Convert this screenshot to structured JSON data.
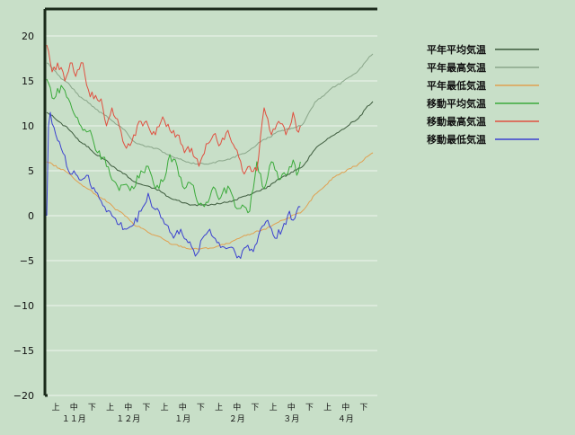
{
  "chart_data": {
    "type": "line",
    "ylim": [
      -20,
      23
    ],
    "yticks": [
      20,
      15,
      10,
      5,
      0,
      -5,
      -10,
      -15,
      -20
    ],
    "ytick_labels": [
      "20",
      "15",
      "10",
      "5",
      "0",
      "−5",
      "−10",
      "−15",
      "−20"
    ],
    "xlim": [
      0,
      180
    ],
    "xticks": [
      {
        "x": 5,
        "label": "上"
      },
      {
        "x": 15,
        "label": "中"
      },
      {
        "x": 25,
        "label": "下"
      },
      {
        "x": 35,
        "label": "上"
      },
      {
        "x": 45,
        "label": "中"
      },
      {
        "x": 55,
        "label": "下"
      },
      {
        "x": 65,
        "label": "上"
      },
      {
        "x": 75,
        "label": "中"
      },
      {
        "x": 85,
        "label": "下"
      },
      {
        "x": 95,
        "label": "上"
      },
      {
        "x": 105,
        "label": "中"
      },
      {
        "x": 115,
        "label": "下"
      },
      {
        "x": 125,
        "label": "上"
      },
      {
        "x": 135,
        "label": "中"
      },
      {
        "x": 145,
        "label": "下"
      },
      {
        "x": 155,
        "label": "上"
      },
      {
        "x": 165,
        "label": "中"
      },
      {
        "x": 175,
        "label": "下"
      }
    ],
    "months": [
      {
        "x": 15,
        "label": "１１月"
      },
      {
        "x": 45,
        "label": "１２月"
      },
      {
        "x": 75,
        "label": "１月"
      },
      {
        "x": 105,
        "label": "２月"
      },
      {
        "x": 135,
        "label": "３月"
      },
      {
        "x": 165,
        "label": "４月"
      }
    ],
    "grid": true,
    "legend_position": "right",
    "series": [
      {
        "name": "平年平均気温",
        "color": "#3c5a3c",
        "jagged": false,
        "points": [
          [
            0,
            11.5
          ],
          [
            10,
            10
          ],
          [
            20,
            8
          ],
          [
            30,
            6.5
          ],
          [
            40,
            5
          ],
          [
            50,
            3.6
          ],
          [
            60,
            3
          ],
          [
            70,
            1.8
          ],
          [
            80,
            1.2
          ],
          [
            90,
            1.2
          ],
          [
            100,
            1.5
          ],
          [
            110,
            2.2
          ],
          [
            120,
            3
          ],
          [
            130,
            4.3
          ],
          [
            140,
            5.3
          ],
          [
            150,
            7.8
          ],
          [
            160,
            9.2
          ],
          [
            170,
            10.5
          ],
          [
            180,
            12.7
          ]
        ]
      },
      {
        "name": "平年最高気温",
        "color": "#8aa68a",
        "jagged": false,
        "points": [
          [
            0,
            17
          ],
          [
            10,
            15
          ],
          [
            20,
            13
          ],
          [
            30,
            11.5
          ],
          [
            40,
            10
          ],
          [
            50,
            8
          ],
          [
            60,
            7.5
          ],
          [
            70,
            6.5
          ],
          [
            80,
            5.8
          ],
          [
            90,
            5.8
          ],
          [
            100,
            6.3
          ],
          [
            110,
            7
          ],
          [
            120,
            8.5
          ],
          [
            130,
            9.5
          ],
          [
            140,
            10
          ],
          [
            150,
            13
          ],
          [
            160,
            14.5
          ],
          [
            170,
            15.8
          ],
          [
            180,
            18
          ]
        ]
      },
      {
        "name": "平年最低気温",
        "color": "#e0a050",
        "jagged": false,
        "points": [
          [
            0,
            6
          ],
          [
            10,
            5
          ],
          [
            20,
            3.3
          ],
          [
            30,
            2
          ],
          [
            40,
            0.5
          ],
          [
            50,
            -1.2
          ],
          [
            60,
            -2.2
          ],
          [
            70,
            -3.2
          ],
          [
            80,
            -3.7
          ],
          [
            90,
            -3.6
          ],
          [
            100,
            -3.1
          ],
          [
            110,
            -2.2
          ],
          [
            120,
            -1.5
          ],
          [
            130,
            -0.5
          ],
          [
            140,
            0.3
          ],
          [
            150,
            2.7
          ],
          [
            160,
            4.5
          ],
          [
            170,
            5.5
          ],
          [
            180,
            7
          ]
        ]
      },
      {
        "name": "移動平均気温",
        "color": "#3aaa3a",
        "jagged": true,
        "points": [
          [
            0,
            15.2
          ],
          [
            4,
            13
          ],
          [
            8,
            14.5
          ],
          [
            12,
            13
          ],
          [
            16,
            11
          ],
          [
            20,
            9.5
          ],
          [
            24,
            9.5
          ],
          [
            28,
            7
          ],
          [
            32,
            6.5
          ],
          [
            36,
            4
          ],
          [
            40,
            2.8
          ],
          [
            44,
            3.5
          ],
          [
            48,
            3
          ],
          [
            52,
            5
          ],
          [
            56,
            5.5
          ],
          [
            60,
            3
          ],
          [
            64,
            3.8
          ],
          [
            68,
            6.8
          ],
          [
            72,
            5.5
          ],
          [
            76,
            3
          ],
          [
            80,
            3.5
          ],
          [
            84,
            1.2
          ],
          [
            88,
            1.5
          ],
          [
            92,
            3.2
          ],
          [
            96,
            2
          ],
          [
            100,
            3.3
          ],
          [
            104,
            1
          ],
          [
            108,
            1.2
          ],
          [
            112,
            0.5
          ],
          [
            116,
            6
          ],
          [
            120,
            3
          ],
          [
            124,
            6
          ],
          [
            128,
            4
          ],
          [
            132,
            4.5
          ],
          [
            136,
            6.2
          ],
          [
            138,
            4.5
          ],
          [
            140,
            6
          ]
        ]
      },
      {
        "name": "移動最高気温",
        "color": "#e05040",
        "jagged": true,
        "points": [
          [
            0,
            19
          ],
          [
            3,
            16
          ],
          [
            6,
            17
          ],
          [
            10,
            15
          ],
          [
            13,
            17
          ],
          [
            16,
            15.5
          ],
          [
            20,
            17
          ],
          [
            23,
            14
          ],
          [
            26,
            13
          ],
          [
            30,
            13
          ],
          [
            33,
            10
          ],
          [
            36,
            12
          ],
          [
            40,
            10
          ],
          [
            44,
            7.5
          ],
          [
            48,
            9
          ],
          [
            52,
            10.5
          ],
          [
            56,
            10
          ],
          [
            60,
            9
          ],
          [
            64,
            11
          ],
          [
            68,
            9.5
          ],
          [
            72,
            9
          ],
          [
            76,
            7
          ],
          [
            80,
            7.5
          ],
          [
            84,
            5.5
          ],
          [
            88,
            8
          ],
          [
            92,
            9
          ],
          [
            96,
            8
          ],
          [
            100,
            9.5
          ],
          [
            104,
            7.5
          ],
          [
            108,
            5
          ],
          [
            112,
            5.5
          ],
          [
            116,
            5
          ],
          [
            120,
            12
          ],
          [
            124,
            9
          ],
          [
            128,
            10.5
          ],
          [
            132,
            9
          ],
          [
            136,
            11.5
          ],
          [
            138,
            9.5
          ],
          [
            140,
            10
          ]
        ]
      },
      {
        "name": "移動最低気温",
        "color": "#3a40d0",
        "jagged": true,
        "points": [
          [
            0,
            0
          ],
          [
            1,
            10
          ],
          [
            2,
            11.5
          ],
          [
            5,
            9
          ],
          [
            8,
            7.5
          ],
          [
            12,
            5
          ],
          [
            15,
            5
          ],
          [
            18,
            4
          ],
          [
            22,
            4.5
          ],
          [
            25,
            3
          ],
          [
            28,
            2.5
          ],
          [
            32,
            1
          ],
          [
            36,
            0
          ],
          [
            40,
            -1
          ],
          [
            44,
            -1.5
          ],
          [
            48,
            -1
          ],
          [
            52,
            0.5
          ],
          [
            56,
            2.5
          ],
          [
            58,
            1
          ],
          [
            62,
            0.5
          ],
          [
            66,
            -1
          ],
          [
            70,
            -2.5
          ],
          [
            74,
            -1.5
          ],
          [
            78,
            -3
          ],
          [
            82,
            -4.5
          ],
          [
            86,
            -2.5
          ],
          [
            90,
            -1.5
          ],
          [
            94,
            -3
          ],
          [
            98,
            -3.5
          ],
          [
            102,
            -3.5
          ],
          [
            106,
            -4.5
          ],
          [
            110,
            -3.5
          ],
          [
            114,
            -4
          ],
          [
            118,
            -1.5
          ],
          [
            122,
            -0.5
          ],
          [
            126,
            -2.5
          ],
          [
            130,
            -1.5
          ],
          [
            134,
            0.5
          ],
          [
            136,
            -0.5
          ],
          [
            138,
            0.5
          ],
          [
            140,
            1
          ]
        ]
      }
    ]
  }
}
